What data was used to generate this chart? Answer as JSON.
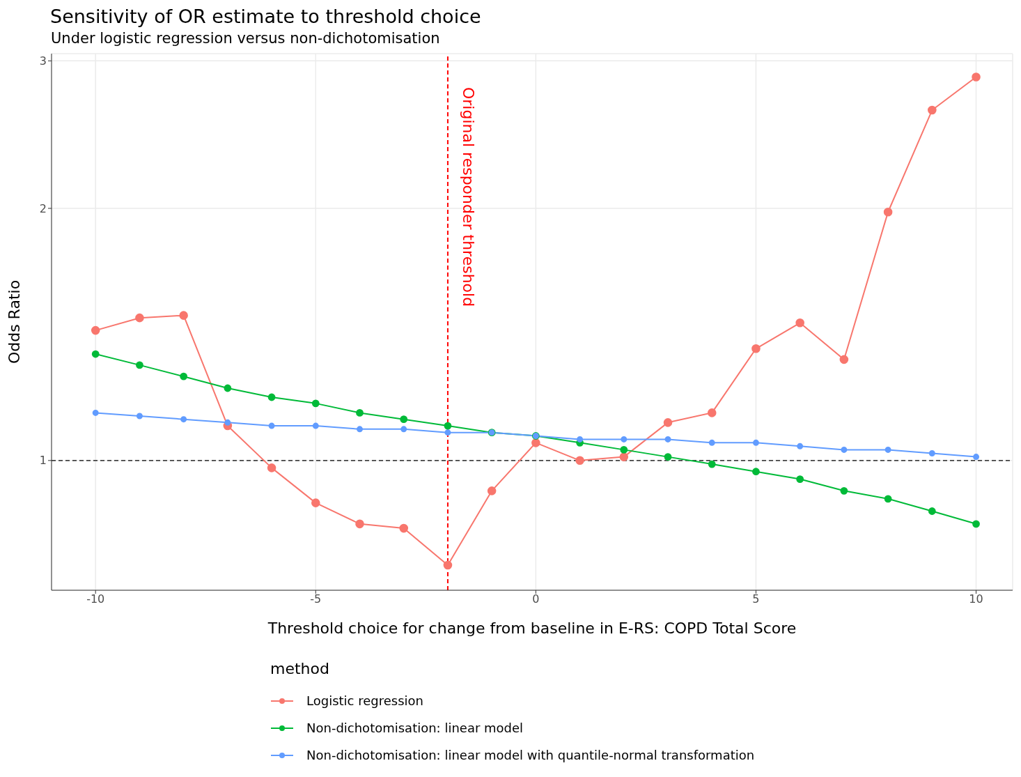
{
  "chart_data": {
    "type": "line",
    "title": "Sensitivity of OR estimate to threshold choice",
    "subtitle": "Under logistic regression versus non-dichotomisation",
    "xlabel": "Threshold choice for change from baseline in E-RS: COPD Total Score",
    "ylabel": "Odds Ratio",
    "legend_title": "method",
    "x": [
      -10,
      -9,
      -8,
      -7,
      -6,
      -5,
      -4,
      -3,
      -2,
      -1,
      0,
      1,
      2,
      3,
      4,
      5,
      6,
      7,
      8,
      9,
      10
    ],
    "series": [
      {
        "name": "Logistic regression",
        "color": "#f8766d",
        "values": [
          1.43,
          1.48,
          1.49,
          1.1,
          0.98,
          0.89,
          0.84,
          0.83,
          0.75,
          0.92,
          1.05,
          1.0,
          1.01,
          1.11,
          1.14,
          1.36,
          1.46,
          1.32,
          1.98,
          2.62,
          2.87
        ]
      },
      {
        "name": "Non-dichotomisation: linear model",
        "color": "#00ba38",
        "values": [
          1.34,
          1.3,
          1.26,
          1.22,
          1.19,
          1.17,
          1.14,
          1.12,
          1.1,
          1.08,
          1.07,
          1.05,
          1.03,
          1.01,
          0.99,
          0.97,
          0.95,
          0.92,
          0.9,
          0.87,
          0.84
        ]
      },
      {
        "name": "Non-dichotomisation: linear model with quantile-normal transformation",
        "color": "#619cff",
        "values": [
          1.14,
          1.13,
          1.12,
          1.11,
          1.1,
          1.1,
          1.09,
          1.09,
          1.08,
          1.08,
          1.07,
          1.06,
          1.06,
          1.06,
          1.05,
          1.05,
          1.04,
          1.03,
          1.03,
          1.02,
          1.01
        ]
      }
    ],
    "xlim": [
      -11,
      10.83
    ],
    "xticks": [
      -10,
      -5,
      0,
      5,
      10
    ],
    "ylim": [
      0.7,
      3.06
    ],
    "yticks": [
      1,
      2,
      3
    ],
    "log": "y",
    "grid": true,
    "legend": "bottom",
    "marker": "circle",
    "line_style": "solid",
    "ref_lines": [
      {
        "axis": "x",
        "value": -2,
        "label": "Original responder threshold",
        "color": "#ff0000",
        "line_style": "dashed"
      },
      {
        "axis": "y",
        "value": 1,
        "label": null,
        "color": "#000000",
        "line_style": "dashed"
      }
    ]
  }
}
